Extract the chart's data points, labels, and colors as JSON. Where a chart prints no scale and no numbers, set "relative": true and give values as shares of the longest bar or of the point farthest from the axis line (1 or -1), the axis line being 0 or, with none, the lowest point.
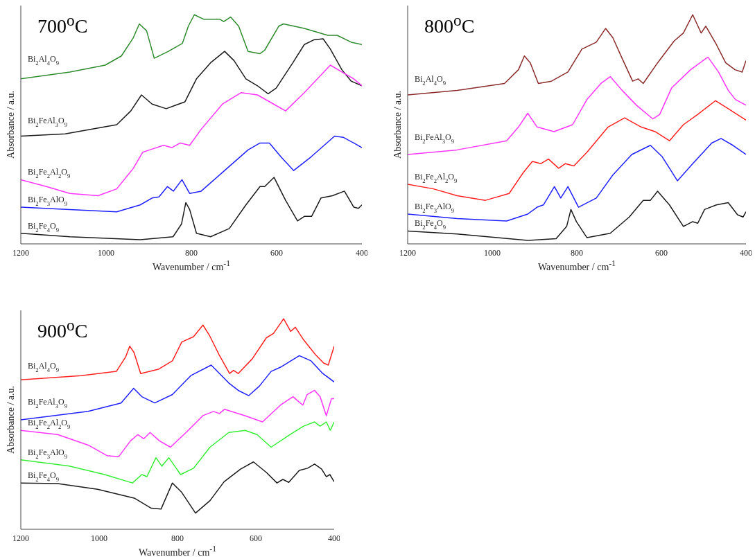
{
  "chart_data": [
    {
      "type": "line",
      "title": "700$^{o}$C",
      "xlabel": "Wavenumber / cm$^{-1}$",
      "ylabel": "Absorbance / a.u.",
      "relative": true,
      "xlim": [
        1200,
        400
      ],
      "xticks": [
        1200,
        1000,
        800,
        600,
        400
      ],
      "series": [
        {
          "name": "Bi$_{2}$Al$_{4}$O$_{9}$",
          "color": "#2e8b2e",
          "x": [
            1200,
            1085,
            1002,
            964,
            936,
            922,
            905,
            887,
            854,
            821,
            807,
            793,
            771,
            733,
            724,
            708,
            689,
            667,
            639,
            628,
            595,
            584,
            535,
            480,
            458,
            425,
            400
          ],
          "values": [
            0.72,
            0.75,
            0.78,
            0.82,
            0.9,
            0.96,
            0.93,
            0.81,
            0.84,
            0.875,
            0.95,
            1.0,
            0.98,
            0.98,
            0.97,
            0.99,
            0.95,
            0.84,
            0.83,
            0.845,
            0.95,
            0.96,
            0.94,
            0.91,
            0.91,
            0.88,
            0.87
          ]
        },
        {
          "name": "Bi$_{2}$FeAl$_{3}$O$_{9}$",
          "color": "#1a1a1a",
          "x": [
            1200,
            1096,
            975,
            942,
            917,
            892,
            859,
            815,
            788,
            755,
            722,
            700,
            672,
            645,
            620,
            601,
            562,
            535,
            513,
            491,
            474,
            447,
            425,
            400
          ],
          "values": [
            0.47,
            0.48,
            0.52,
            0.58,
            0.65,
            0.61,
            0.59,
            0.62,
            0.72,
            0.79,
            0.84,
            0.8,
            0.72,
            0.69,
            0.655,
            0.68,
            0.79,
            0.87,
            0.89,
            0.895,
            0.85,
            0.76,
            0.71,
            0.69
          ]
        },
        {
          "name": "Bi$_{2}$Fe$_{2}$Al$_{2}$O$_{9}$",
          "color": "#ff33ff",
          "x": [
            1200,
            1140,
            1085,
            1019,
            975,
            936,
            914,
            898,
            865,
            846,
            826,
            804,
            777,
            727,
            683,
            645,
            607,
            579,
            535,
            474,
            447,
            419,
            400
          ],
          "values": [
            0.28,
            0.25,
            0.22,
            0.21,
            0.24,
            0.33,
            0.4,
            0.41,
            0.43,
            0.42,
            0.44,
            0.43,
            0.5,
            0.61,
            0.66,
            0.65,
            0.61,
            0.58,
            0.66,
            0.78,
            0.75,
            0.72,
            0.69
          ]
        },
        {
          "name": "Bi$_{2}$Fe$_{3}$AlO$_{9}$",
          "color": "#1f1fff",
          "x": [
            1200,
            1085,
            975,
            920,
            892,
            876,
            856,
            842,
            822,
            804,
            777,
            722,
            667,
            639,
            617,
            590,
            560,
            519,
            464,
            444,
            419,
            400
          ],
          "values": [
            0.16,
            0.15,
            0.14,
            0.17,
            0.2,
            0.205,
            0.25,
            0.23,
            0.28,
            0.22,
            0.23,
            0.32,
            0.41,
            0.44,
            0.44,
            0.38,
            0.32,
            0.38,
            0.47,
            0.465,
            0.44,
            0.42
          ]
        },
        {
          "name": "Bi$_{2}$Fe$_{4}$O$_{9}$",
          "color": "#1a1a1a",
          "x": [
            1200,
            1085,
            920,
            843,
            823,
            813,
            804,
            788,
            755,
            711,
            672,
            639,
            628,
            606,
            579,
            551,
            535,
            518,
            496,
            469,
            441,
            419,
            408,
            400
          ],
          "values": [
            0.046,
            0.031,
            0.018,
            0.031,
            0.087,
            0.18,
            0.15,
            0.046,
            0.031,
            0.067,
            0.17,
            0.25,
            0.25,
            0.29,
            0.19,
            0.1,
            0.12,
            0.12,
            0.2,
            0.21,
            0.23,
            0.16,
            0.155,
            0.17
          ]
        }
      ]
    },
    {
      "type": "line",
      "title": "800$^{o}$C",
      "xlabel": "Wavenumber / cm$^{-1}$",
      "ylabel": "Absorbance / a.u.",
      "relative": true,
      "xlim": [
        1200,
        400
      ],
      "xticks": [
        1200,
        1000,
        800,
        600,
        400
      ],
      "series": [
        {
          "name": "Bi$_{2}$Al$_{4}$O$_{9}$",
          "color": "#8b2a2a",
          "x": [
            1200,
            1083,
            971,
            938,
            924,
            910,
            891,
            860,
            821,
            788,
            754,
            732,
            715,
            693,
            668,
            655,
            643,
            609,
            570,
            548,
            526,
            506,
            495,
            470,
            448,
            426,
            409,
            400
          ],
          "values": [
            0.65,
            0.67,
            0.7,
            0.76,
            0.82,
            0.79,
            0.7,
            0.71,
            0.75,
            0.85,
            0.88,
            0.94,
            0.9,
            0.81,
            0.71,
            0.72,
            0.7,
            0.79,
            0.885,
            0.92,
            1.0,
            0.92,
            0.95,
            0.87,
            0.79,
            0.76,
            0.75,
            0.8
          ]
        },
        {
          "name": "Bi$_{2}$FeAl$_{3}$O$_{9}$",
          "color": "#ff33ff",
          "x": [
            1200,
            1083,
            966,
            938,
            916,
            894,
            854,
            810,
            776,
            743,
            721,
            693,
            659,
            620,
            604,
            576,
            531,
            490,
            465,
            442,
            425,
            400
          ],
          "values": [
            0.39,
            0.41,
            0.45,
            0.51,
            0.57,
            0.51,
            0.49,
            0.52,
            0.63,
            0.7,
            0.73,
            0.67,
            0.605,
            0.545,
            0.565,
            0.68,
            0.76,
            0.815,
            0.75,
            0.67,
            0.63,
            0.605
          ]
        },
        {
          "name": "Bi$_{2}$Fe$_{2}$Al$_{2}$O$_{9}$",
          "color": "#ff2020",
          "x": [
            1200,
            1139,
            1083,
            1016,
            960,
            927,
            905,
            885,
            867,
            843,
            827,
            807,
            776,
            726,
            687,
            648,
            615,
            581,
            548,
            514,
            472,
            442,
            400
          ],
          "values": [
            0.26,
            0.24,
            0.21,
            0.19,
            0.22,
            0.31,
            0.36,
            0.35,
            0.37,
            0.33,
            0.35,
            0.34,
            0.4,
            0.51,
            0.55,
            0.51,
            0.49,
            0.45,
            0.52,
            0.565,
            0.625,
            0.59,
            0.54
          ]
        },
        {
          "name": "Bi$_{2}$Fe$_{3}$AlO$_{9}$",
          "color": "#1f1fff",
          "x": [
            1200,
            1083,
            966,
            916,
            894,
            879,
            853,
            838,
            821,
            796,
            754,
            715,
            670,
            626,
            598,
            562,
            526,
            481,
            459,
            431,
            400
          ],
          "values": [
            0.13,
            0.11,
            0.1,
            0.13,
            0.16,
            0.17,
            0.25,
            0.2,
            0.25,
            0.16,
            0.2,
            0.3,
            0.39,
            0.43,
            0.38,
            0.275,
            0.35,
            0.44,
            0.46,
            0.43,
            0.39
          ]
        },
        {
          "name": "Bi$_{2}$Fe$_{4}$O$_{9}$",
          "color": "#1a1a1a",
          "x": [
            1200,
            1083,
            916,
            849,
            824,
            814,
            801,
            776,
            721,
            676,
            643,
            626,
            609,
            581,
            548,
            526,
            514,
            498,
            470,
            442,
            420,
            407,
            400
          ],
          "values": [
            0.056,
            0.043,
            0.015,
            0.023,
            0.076,
            0.15,
            0.097,
            0.027,
            0.046,
            0.117,
            0.19,
            0.19,
            0.23,
            0.17,
            0.076,
            0.097,
            0.09,
            0.15,
            0.17,
            0.18,
            0.127,
            0.117,
            0.14
          ]
        }
      ]
    },
    {
      "type": "line",
      "title": "900$^{o}$C",
      "xlabel": "Wavenumber / cm$^{-1}$",
      "ylabel": "Absorbance / a.u.",
      "relative": true,
      "xlim": [
        1200,
        400
      ],
      "xticks": [
        1200,
        1000,
        800,
        600,
        400
      ],
      "series": [
        {
          "name": "Bi$_{2}$Al$_{4}$O$_{9}$",
          "color": "#ff2020",
          "x": [
            1200,
            1046,
            956,
            932,
            922,
            911,
            894,
            849,
            813,
            789,
            759,
            735,
            718,
            694,
            667,
            657,
            645,
            609,
            573,
            555,
            529,
            511,
            499,
            478,
            448,
            427,
            415,
            400
          ],
          "values": [
            0.71,
            0.73,
            0.75,
            0.82,
            0.87,
            0.84,
            0.74,
            0.76,
            0.8,
            0.89,
            0.915,
            0.97,
            0.92,
            0.83,
            0.74,
            0.755,
            0.74,
            0.81,
            0.91,
            0.93,
            1.0,
            0.94,
            0.96,
            0.9,
            0.83,
            0.79,
            0.78,
            0.87
          ]
        },
        {
          "name": "Bi$_{2}$FeAl$_{3}$O$_{9}$",
          "color": "#1f1fff",
          "x": [
            1200,
            1028,
            944,
            912,
            891,
            858,
            813,
            766,
            714,
            669,
            645,
            618,
            591,
            561,
            537,
            489,
            459,
            429,
            400
          ],
          "values": [
            0.52,
            0.56,
            0.6,
            0.67,
            0.63,
            0.6,
            0.64,
            0.73,
            0.78,
            0.695,
            0.66,
            0.635,
            0.68,
            0.75,
            0.77,
            0.825,
            0.8,
            0.74,
            0.7
          ]
        },
        {
          "name": "Bi$_{2}$Fe$_{2}$Al$_{2}$O$_{9}$",
          "color": "#ff33ff",
          "x": [
            1200,
            1106,
            1028,
            980,
            950,
            920,
            901,
            886,
            870,
            846,
            818,
            778,
            735,
            708,
            693,
            680,
            628,
            583,
            537,
            505,
            493,
            480,
            469,
            450,
            436,
            420,
            407,
            400
          ],
          "values": [
            0.47,
            0.45,
            0.4,
            0.35,
            0.345,
            0.42,
            0.45,
            0.43,
            0.46,
            0.42,
            0.39,
            0.46,
            0.54,
            0.56,
            0.55,
            0.57,
            0.54,
            0.51,
            0.59,
            0.63,
            0.61,
            0.59,
            0.64,
            0.66,
            0.63,
            0.54,
            0.62,
            0.62
          ]
        },
        {
          "name": "Bi$_{2}$Fe$_{3}$AlO$_{9}$",
          "color": "#33ee33",
          "x": [
            1200,
            1076,
            986,
            915,
            891,
            878,
            855,
            840,
            822,
            792,
            759,
            717,
            669,
            627,
            597,
            561,
            513,
            478,
            450,
            436,
            420,
            410,
            400
          ],
          "values": [
            0.33,
            0.3,
            0.26,
            0.22,
            0.26,
            0.25,
            0.34,
            0.3,
            0.34,
            0.26,
            0.29,
            0.39,
            0.46,
            0.47,
            0.45,
            0.39,
            0.45,
            0.49,
            0.51,
            0.49,
            0.51,
            0.47,
            0.51
          ]
        },
        {
          "name": "Bi$_{2}$Fe$_{4}$O$_{9}$",
          "color": "#1a1a1a",
          "x": [
            1200,
            1106,
            1004,
            909,
            867,
            842,
            813,
            789,
            754,
            717,
            681,
            639,
            606,
            573,
            546,
            531,
            516,
            489,
            468,
            450,
            432,
            420,
            411,
            400
          ],
          "values": [
            0.22,
            0.217,
            0.19,
            0.147,
            0.1,
            0.096,
            0.22,
            0.175,
            0.077,
            0.136,
            0.226,
            0.286,
            0.32,
            0.27,
            0.22,
            0.237,
            0.223,
            0.28,
            0.29,
            0.31,
            0.286,
            0.25,
            0.26,
            0.226
          ]
        }
      ]
    }
  ]
}
